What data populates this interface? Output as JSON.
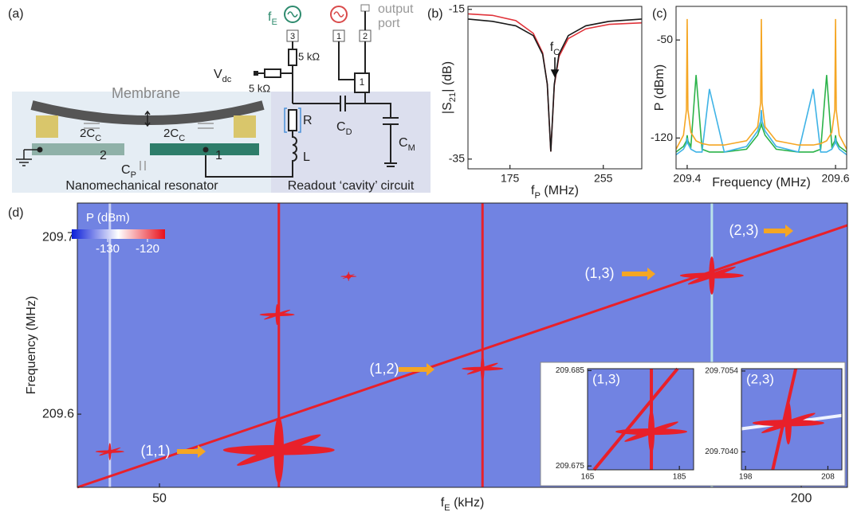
{
  "diagram": {
    "panel_label": "(a)",
    "source_label": [
      "f",
      "E"
    ],
    "ports": [
      "3",
      "1",
      "2"
    ],
    "output_label": [
      "output",
      "port"
    ],
    "resistors": [
      "5 kΩ",
      "5 kΩ"
    ],
    "vdc": [
      "V",
      "dc"
    ],
    "membrane": "Membrane",
    "coupling_caps": [
      [
        "2C",
        "C"
      ],
      [
        "2C",
        "C"
      ]
    ],
    "r": "R",
    "l": "L",
    "cd": [
      "C",
      "D"
    ],
    "cm": [
      "C",
      "M"
    ],
    "electrodes": [
      "2",
      "1"
    ],
    "cp": [
      "C",
      "P"
    ],
    "box_port": "1",
    "left_caption": "Nanomechanical resonator",
    "right_caption": "Readout ‘cavity’ circuit"
  },
  "panel_labels": [
    "(b)",
    "(c)",
    "(d)"
  ],
  "chart_data": [
    {
      "type": "line",
      "xlabel": [
        "f",
        "P",
        " (MHz)"
      ],
      "ylabel": [
        "|S",
        "21",
        "| (dB)"
      ],
      "x": [
        139,
        160,
        180,
        195,
        203,
        207,
        210,
        213,
        217,
        225,
        240,
        260,
        288
      ],
      "series": [
        {
          "color": "#e0333a",
          "values": [
            -15.6,
            -15.8,
            -16.5,
            -18.2,
            -20.8,
            -25,
            -34,
            -25.2,
            -21.3,
            -18.9,
            -17.6,
            -17,
            -16.8
          ]
        },
        {
          "color": "#1a1a1a",
          "values": [
            -16.3,
            -16.6,
            -17.2,
            -18.5,
            -21,
            -25,
            -34,
            -25,
            -21,
            -18.5,
            -17.2,
            -16.6,
            -16.3
          ]
        }
      ],
      "xlim": [
        139,
        288
      ],
      "ylim": [
        -36.3,
        -14.6
      ],
      "xticks": [
        175,
        255
      ],
      "yticks": [
        -15,
        -35
      ],
      "annotation": [
        "f",
        "C"
      ]
    },
    {
      "type": "line",
      "xlabel": [
        "Frequency (MHz)"
      ],
      "ylabel": [
        "P (dBm)"
      ],
      "x": [
        209.385,
        209.395,
        209.399,
        209.4,
        209.401,
        209.405,
        209.412,
        209.42,
        209.43,
        209.45,
        209.48,
        209.495,
        209.499,
        209.5,
        209.501,
        209.505,
        209.52,
        209.55,
        209.57,
        209.58,
        209.588,
        209.595,
        209.599,
        209.6,
        209.601,
        209.605,
        209.615
      ],
      "series": [
        {
          "color": "#2cb34a",
          "values": [
            -130,
            -126,
            -122,
            -118,
            -122,
            -126,
            -75,
            -128,
            -130,
            -130,
            -128,
            -118,
            -112,
            -110,
            -112,
            -118,
            -128,
            -130,
            -130,
            -128,
            -75,
            -126,
            -122,
            -118,
            -122,
            -126,
            -130
          ]
        },
        {
          "color": "#3fb3e6",
          "values": [
            -132,
            -128,
            -124,
            -120,
            -124,
            -128,
            -130,
            -130,
            -85,
            -130,
            -126,
            -115,
            -108,
            -100,
            -108,
            -115,
            -126,
            -130,
            -85,
            -130,
            -130,
            -128,
            -124,
            -120,
            -124,
            -128,
            -132
          ]
        },
        {
          "color": "#f5a623",
          "values": [
            -128,
            -118,
            -100,
            -35,
            -100,
            -116,
            -122,
            -124,
            -125,
            -125,
            -122,
            -112,
            -95,
            -35,
            -95,
            -112,
            -122,
            -125,
            -125,
            -124,
            -122,
            -116,
            -100,
            -35,
            -100,
            -118,
            -128
          ]
        }
      ],
      "xlim": [
        209.385,
        209.615
      ],
      "ylim": [
        -142,
        -26
      ],
      "xticks": [
        209.4,
        209.6
      ],
      "yticks": [
        -50,
        -120
      ]
    },
    {
      "type": "heatmap",
      "xlabel": [
        "f",
        "E",
        " (kHz)"
      ],
      "ylabel": [
        "Frequency (MHz)"
      ],
      "xlim": [
        30.8,
        210.8
      ],
      "ylim": [
        209.5586,
        209.7194
      ],
      "xticks": [
        50,
        200
      ],
      "yticks": [
        209.6,
        209.7
      ],
      "background": "#7183e2",
      "lines": [
        {
          "color": "#c9d1f6",
          "x": [
            38.4,
            38.4
          ],
          "values": [
            209.5586,
            209.7194
          ]
        },
        {
          "color": "#b9e3ea",
          "x": [
            179.1,
            179.1
          ],
          "values": [
            209.5586,
            209.7194
          ]
        },
        {
          "color": "#e8202a",
          "x": [
            77.9,
            77.9
          ],
          "values": [
            209.5586,
            209.7194
          ]
        },
        {
          "color": "#e8202a",
          "x": [
            125.5,
            125.5
          ],
          "values": [
            209.5586,
            209.7194
          ]
        },
        {
          "color": "#e8202a",
          "x": [
            30.8,
            210.8
          ],
          "values": [
            209.5586,
            209.7068
          ]
        }
      ],
      "peaks": [
        {
          "x": 38.4,
          "y": 209.5788
        },
        {
          "x": 77.9,
          "y": 209.5797
        },
        {
          "x": 77.5,
          "y": 209.6563
        },
        {
          "x": 94.2,
          "y": 209.6779
        },
        {
          "x": 125.5,
          "y": 209.6257
        },
        {
          "x": 179.1,
          "y": 209.6784
        }
      ],
      "annotations": [
        "(1,1)",
        "(1,2)",
        "(1,3)",
        "(2,3)"
      ],
      "colorbar": {
        "label": "P (dBm)",
        "lim": [
          -139,
          -115.6
        ],
        "ticks": [
          -130,
          -120
        ],
        "colors": [
          "#0a1ed8",
          "#ffffff",
          "#e8101c"
        ]
      },
      "insets": [
        {
          "label": "(1,3)",
          "xlim": [
            165,
            188.1
          ],
          "ylim": [
            209.6746,
            209.6852
          ],
          "xticks": [
            165,
            185
          ],
          "yticks": [
            209.675,
            209.685
          ],
          "lines": [
            {
              "color": "#e8202a",
              "x": [
                178.9,
                178.9
              ],
              "values": [
                209.6746,
                209.6852
              ]
            },
            {
              "color": "#e8202a",
              "x": [
                166.4,
                184.6
              ],
              "values": [
                209.6746,
                209.6852
              ]
            }
          ],
          "peaks": [
            {
              "x": 178.9,
              "y": 209.6786
            }
          ]
        },
        {
          "label": "(2,3)",
          "xlim": [
            197.5,
            209.7
          ],
          "ylim": [
            209.70369,
            209.70544
          ],
          "xticks": [
            198,
            208
          ],
          "yticks": [
            {
              "value": 209.704,
              "label": "209.7040"
            },
            209.7054
          ],
          "lines": [
            {
              "color": "#eef2ff",
              "x": [
                197.5,
                209.7
              ],
              "values": [
                209.7044,
                209.70463
              ]
            },
            {
              "color": "#e8202a",
              "x": [
                201.3,
                204.1
              ],
              "values": [
                209.70369,
                209.70544
              ]
            }
          ],
          "peaks": [
            {
              "x": 203.2,
              "y": 209.7045
            }
          ]
        }
      ]
    }
  ]
}
